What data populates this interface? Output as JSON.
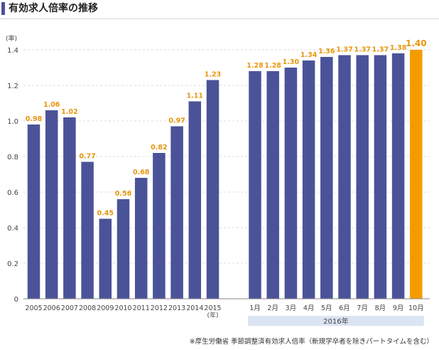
{
  "title": "有効求人倍率の推移",
  "source": "※厚生労働省 季節調整済有効求人倍率（新規学卒者を除きパートタイムを含む）",
  "colors": {
    "bar": "#4b5398",
    "highlight": "#f49b00",
    "label": "#e8960c",
    "axis": "#444444",
    "grid": "#dddddd",
    "group_band": "#dbe4f3"
  },
  "chart_data": {
    "type": "bar",
    "ylabel": "(率)",
    "ylim": [
      0,
      1.4
    ],
    "yticks": [
      "0",
      "0.2",
      "0.4",
      "0.6",
      "0.8",
      "1.0",
      "1.2",
      "1.4"
    ],
    "grid": true,
    "year_unit_label": "(年)",
    "group_label": "2016年",
    "categories": [
      "2005",
      "2006",
      "2007",
      "2008",
      "2009",
      "2010",
      "2011",
      "2012",
      "2013",
      "2014",
      "2015",
      "1月",
      "2月",
      "3月",
      "4月",
      "5月",
      "6月",
      "7月",
      "8月",
      "9月",
      "10月"
    ],
    "values": [
      0.98,
      1.06,
      1.02,
      0.77,
      0.45,
      0.56,
      0.68,
      0.82,
      0.97,
      1.11,
      1.23,
      1.28,
      1.28,
      1.3,
      1.34,
      1.36,
      1.37,
      1.37,
      1.37,
      1.38,
      1.4
    ],
    "data_labels": [
      "0.98",
      "1.06",
      "1.02",
      "0.77",
      "0.45",
      "0.56",
      "0.68",
      "0.82",
      "0.97",
      "1.11",
      "1.23",
      "1.28",
      "1.28",
      "1.30",
      "1.34",
      "1.36",
      "1.37",
      "1.37",
      "1.37",
      "1.38",
      "1.40"
    ],
    "highlight_category": "10月"
  }
}
